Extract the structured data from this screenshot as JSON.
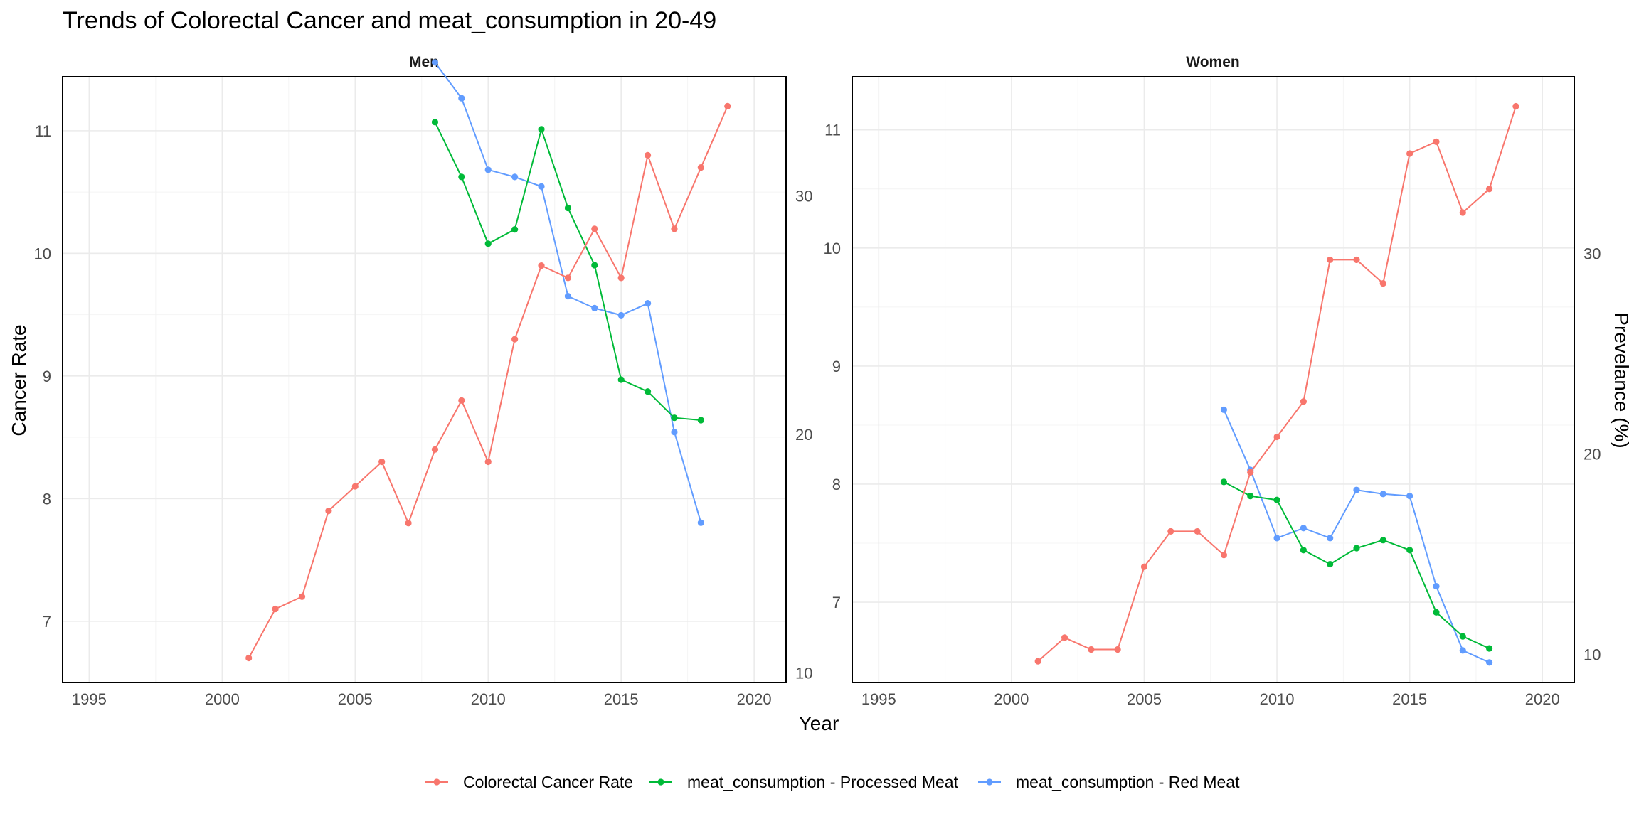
{
  "chart_data": {
    "type": "line",
    "title": "Trends of Colorectal Cancer and meat_consumption in 20-49",
    "xlabel": "Year",
    "ylabel_left": "Cancer Rate",
    "ylabel_right": "Prevelance (%)",
    "x_ticks": [
      1995,
      2000,
      2005,
      2010,
      2015,
      2020
    ],
    "xlim": [
      1994,
      2021.2
    ],
    "legend_position": "bottom",
    "series_meta": [
      {
        "key": "cancer",
        "name": "Colorectal Cancer Rate",
        "color": "#F8766D"
      },
      {
        "key": "processed",
        "name": "meat_consumption - Processed Meat",
        "color": "#00BA38"
      },
      {
        "key": "red",
        "name": "meat_consumption - Red Meat",
        "color": "#619CFF"
      }
    ],
    "panels": [
      {
        "strip": "Men",
        "left_ticks": [
          7,
          8,
          9,
          10,
          11
        ],
        "left_ylim": [
          6.5,
          11.44
        ],
        "right_ticks": [
          10,
          20,
          30
        ],
        "right_ylim": [
          9.6,
          35.0
        ],
        "series": {
          "cancer": {
            "x": [
              2001,
              2002,
              2003,
              2004,
              2005,
              2006,
              2007,
              2008,
              2009,
              2010,
              2011,
              2012,
              2013,
              2014,
              2015,
              2016,
              2017,
              2018,
              2019
            ],
            "y": [
              6.7,
              7.1,
              7.2,
              7.9,
              8.1,
              8.3,
              7.8,
              8.4,
              8.8,
              8.3,
              9.3,
              9.9,
              9.8,
              10.2,
              9.8,
              10.8,
              10.2,
              10.7,
              11.2
            ]
          },
          "processed": {
            "x": [
              2008,
              2009,
              2010,
              2011,
              2012,
              2013,
              2014,
              2015,
              2016,
              2017,
              2018
            ],
            "y": [
              33.1,
              30.8,
              28.0,
              28.6,
              32.8,
              29.5,
              27.1,
              22.3,
              21.8,
              20.7,
              20.6
            ]
          },
          "red": {
            "x": [
              2008,
              2009,
              2010,
              2011,
              2012,
              2013,
              2014,
              2015,
              2016,
              2017,
              2018
            ],
            "y": [
              35.6,
              34.1,
              31.1,
              30.8,
              30.4,
              25.8,
              25.3,
              25.0,
              25.5,
              20.1,
              16.3
            ]
          }
        }
      },
      {
        "strip": "Women",
        "left_ticks": [
          7,
          8,
          9,
          10,
          11
        ],
        "left_ylim": [
          6.32,
          11.45
        ],
        "right_ticks": [
          10,
          20,
          30
        ],
        "right_ylim": [
          8.6,
          38.8
        ],
        "series": {
          "cancer": {
            "x": [
              2001,
              2002,
              2003,
              2004,
              2005,
              2006,
              2007,
              2008,
              2009,
              2010,
              2011,
              2012,
              2013,
              2014,
              2015,
              2016,
              2017,
              2018,
              2019
            ],
            "y": [
              6.5,
              6.7,
              6.6,
              6.6,
              7.3,
              7.6,
              7.6,
              7.4,
              8.1,
              8.4,
              8.7,
              9.9,
              9.9,
              9.7,
              10.8,
              10.9,
              10.3,
              10.5,
              11.2
            ]
          },
          "processed": {
            "x": [
              2008,
              2009,
              2010,
              2011,
              2012,
              2013,
              2014,
              2015,
              2016,
              2017,
              2018
            ],
            "y": [
              18.6,
              17.9,
              17.7,
              15.2,
              14.5,
              15.3,
              15.7,
              15.2,
              12.1,
              10.9,
              10.3
            ]
          },
          "red": {
            "x": [
              2008,
              2009,
              2010,
              2011,
              2012,
              2013,
              2014,
              2015,
              2016,
              2017,
              2018
            ],
            "y": [
              22.2,
              19.2,
              15.8,
              16.3,
              15.8,
              18.2,
              18.0,
              17.9,
              13.4,
              10.2,
              9.6
            ]
          }
        }
      }
    ]
  }
}
